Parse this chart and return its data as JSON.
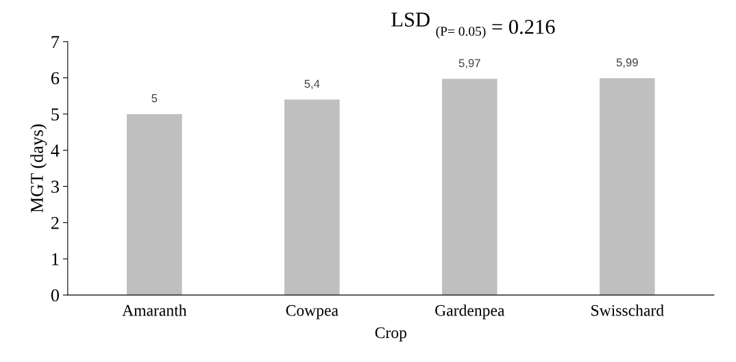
{
  "chart_data": {
    "type": "bar",
    "title": "LSD $_{(P= 0.05)}$ = 0.216",
    "xlabel": "Crop",
    "ylabel": "MGT (days)",
    "categories": [
      "Amaranth",
      "Cowpea",
      "Gardenpea",
      "Swisschard"
    ],
    "values": [
      5,
      5.4,
      5.97,
      5.99
    ],
    "value_labels": [
      "5",
      "5,4",
      "5,97",
      "5,99"
    ],
    "color": "#bfbfbf",
    "ylim": [
      0,
      7
    ],
    "yticks": [
      0,
      1,
      2,
      3,
      4,
      5,
      6,
      7
    ],
    "grid": false,
    "legend": false
  }
}
